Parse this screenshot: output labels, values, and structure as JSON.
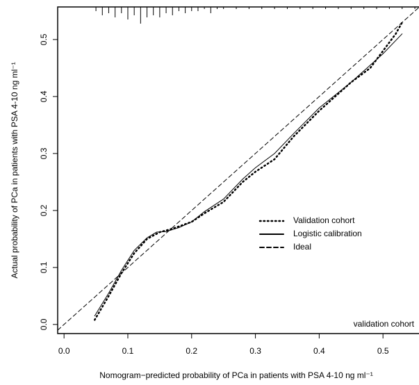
{
  "chart_data": {
    "type": "line",
    "x_label": "Nomogram−predicted probability of PCa  in patients with PSA 4-10 ng ml⁻¹",
    "y_label": "Actual probability of PCa in patients with PSA 4-10 ng ml⁻¹",
    "annotation": "validation cohort",
    "xlim": [
      -0.01,
      0.557
    ],
    "ylim": [
      -0.016,
      0.557
    ],
    "xticks": [
      {
        "value": 0,
        "label": "0.0"
      },
      0.1,
      0.2,
      0.3,
      0.4,
      0.5
    ],
    "yticks": [
      {
        "value": 0,
        "label": "0.0"
      },
      0.1,
      0.2,
      0.3,
      0.4,
      0.5
    ],
    "legend_position": "right",
    "series": [
      {
        "name": "Validation cohort",
        "color": "#000000",
        "style": "dotted",
        "x": [
          0.048,
          0.07,
          0.09,
          0.11,
          0.13,
          0.15,
          0.17,
          0.2,
          0.22,
          0.25,
          0.28,
          0.3,
          0.33,
          0.36,
          0.4,
          0.45,
          0.48,
          0.5,
          0.52,
          0.53
        ],
        "values": [
          0.008,
          0.05,
          0.09,
          0.125,
          0.15,
          0.162,
          0.168,
          0.18,
          0.195,
          0.215,
          0.25,
          0.268,
          0.29,
          0.33,
          0.375,
          0.425,
          0.45,
          0.48,
          0.51,
          0.53
        ]
      },
      {
        "name": "Logistic calibration",
        "color": "#000000",
        "style": "solid",
        "x": [
          0.048,
          0.07,
          0.09,
          0.11,
          0.13,
          0.145,
          0.16,
          0.18,
          0.2,
          0.22,
          0.25,
          0.28,
          0.3,
          0.33,
          0.36,
          0.4,
          0.45,
          0.5,
          0.53
        ],
        "values": [
          0.015,
          0.055,
          0.095,
          0.13,
          0.152,
          0.162,
          0.163,
          0.17,
          0.18,
          0.198,
          0.22,
          0.255,
          0.275,
          0.3,
          0.335,
          0.38,
          0.425,
          0.475,
          0.51
        ]
      },
      {
        "name": "Ideal",
        "color": "#000000",
        "style": "dashed",
        "x": [
          -0.01,
          0.557
        ],
        "values": [
          -0.01,
          0.557
        ]
      }
    ],
    "rug": {
      "x": [
        0.05,
        0.06,
        0.07,
        0.08,
        0.09,
        0.1,
        0.11,
        0.12,
        0.13,
        0.14,
        0.15,
        0.16,
        0.17,
        0.18,
        0.19,
        0.2,
        0.21,
        0.22,
        0.23,
        0.24,
        0.25,
        0.27,
        0.29,
        0.31,
        0.33,
        0.35,
        0.37,
        0.39,
        0.41,
        0.43,
        0.45,
        0.47,
        0.49,
        0.51,
        0.53,
        0.55
      ],
      "counts": [
        2,
        4,
        3,
        5,
        3,
        6,
        4,
        8,
        5,
        4,
        5,
        3,
        4,
        2,
        3,
        2,
        2,
        1,
        3,
        1,
        1,
        1,
        1,
        1,
        1,
        1,
        1,
        1,
        1,
        1,
        1,
        1,
        1,
        1,
        1,
        1
      ]
    }
  }
}
